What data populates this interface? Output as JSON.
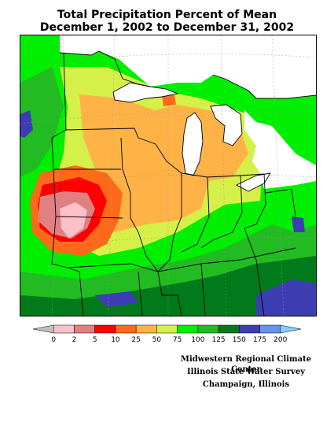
{
  "title": {
    "line1": "Total Precipitation Percent of Mean",
    "line2": "December 1, 2002 to December 31, 2002"
  },
  "legend": {
    "ticks": [
      "0",
      "2",
      "5",
      "10",
      "25",
      "50",
      "75",
      "100",
      "125",
      "150",
      "175",
      "200"
    ],
    "colors": [
      "#c0c0c0",
      "#ffc0cb",
      "#e08080",
      "#ff0000",
      "#ff6a1a",
      "#ffb347",
      "#d6f04a",
      "#00ee00",
      "#22bb22",
      "#007a1a",
      "#3d3db3",
      "#6495ed",
      "#87cefa"
    ]
  },
  "colors": {
    "water": "#ffffff",
    "lines": "#000000",
    "grid": "#999999"
  },
  "credits": {
    "line1": "Midwestern Regional Climate Center",
    "line2": "Illinois State Water Survey",
    "line3": "Champaign, Illinois"
  }
}
